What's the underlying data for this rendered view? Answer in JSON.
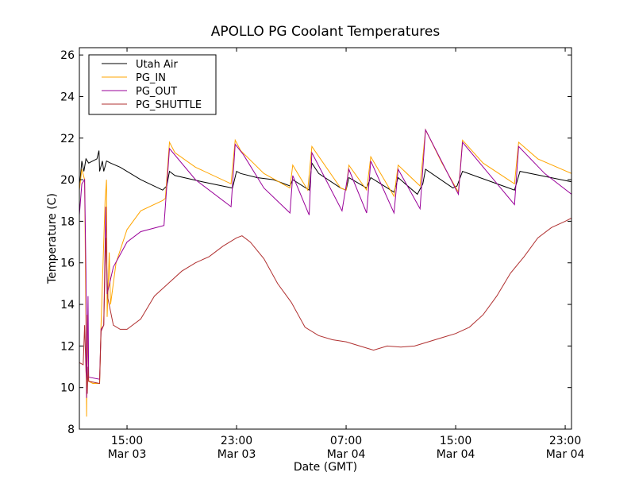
{
  "chart_data": {
    "type": "line",
    "title": "APOLLO PG Coolant Temperatures",
    "xlabel": "Date (GMT)",
    "ylabel": "Temperature (C)",
    "x_units": "hours since Mar 03 00:00 GMT",
    "xlim": [
      11.52,
      47.46
    ],
    "ylim": [
      8,
      26.35
    ],
    "grid": false,
    "legend_placement": "top-left",
    "yticks": [
      8,
      10,
      12,
      14,
      16,
      18,
      20,
      22,
      24,
      26
    ],
    "xticks": [
      {
        "value": 15,
        "time": "15:00",
        "date": "Mar 03"
      },
      {
        "value": 23,
        "time": "23:00",
        "date": "Mar 03"
      },
      {
        "value": 31,
        "time": "07:00",
        "date": "Mar 04"
      },
      {
        "value": 39,
        "time": "15:00",
        "date": "Mar 04"
      },
      {
        "value": 47,
        "time": "23:00",
        "date": "Mar 04"
      }
    ],
    "series": [
      {
        "name": "Utah Air",
        "color": "#000000",
        "points": [
          [
            11.52,
            19.6
          ],
          [
            11.7,
            20.9
          ],
          [
            11.85,
            20.4
          ],
          [
            12.0,
            21.0
          ],
          [
            12.2,
            20.8
          ],
          [
            12.5,
            20.9
          ],
          [
            12.8,
            21.0
          ],
          [
            12.95,
            21.4
          ],
          [
            13.0,
            20.4
          ],
          [
            13.2,
            20.9
          ],
          [
            13.3,
            20.4
          ],
          [
            13.5,
            20.9
          ],
          [
            13.8,
            20.8
          ],
          [
            14.5,
            20.6
          ],
          [
            16.0,
            20.0
          ],
          [
            17.6,
            19.5
          ],
          [
            17.9,
            19.7
          ],
          [
            18.1,
            20.4
          ],
          [
            18.5,
            20.2
          ],
          [
            20.5,
            19.9
          ],
          [
            22.7,
            19.6
          ],
          [
            23.0,
            20.4
          ],
          [
            23.3,
            20.3
          ],
          [
            24.5,
            20.1
          ],
          [
            25.7,
            20.0
          ],
          [
            26.9,
            19.7
          ],
          [
            27.1,
            20.0
          ],
          [
            28.3,
            19.5
          ],
          [
            28.5,
            20.8
          ],
          [
            29.0,
            20.3
          ],
          [
            30.6,
            19.6
          ],
          [
            31.0,
            19.5
          ],
          [
            31.2,
            20.1
          ],
          [
            32.5,
            19.6
          ],
          [
            32.8,
            20.1
          ],
          [
            34.5,
            19.4
          ],
          [
            34.8,
            20.1
          ],
          [
            36.2,
            19.3
          ],
          [
            36.6,
            19.8
          ],
          [
            36.8,
            20.5
          ],
          [
            38.8,
            19.6
          ],
          [
            39.1,
            19.7
          ],
          [
            39.5,
            20.4
          ],
          [
            43.3,
            19.5
          ],
          [
            43.7,
            20.4
          ],
          [
            47.46,
            19.9
          ]
        ]
      },
      {
        "name": "PG_IN",
        "color": "#FFA500",
        "points": [
          [
            11.52,
            19.5
          ],
          [
            11.7,
            20.5
          ],
          [
            11.9,
            20.0
          ],
          [
            12.0,
            13.0
          ],
          [
            12.05,
            8.6
          ],
          [
            12.1,
            13.5
          ],
          [
            12.2,
            10.3
          ],
          [
            12.5,
            10.2
          ],
          [
            13.0,
            10.2
          ],
          [
            13.1,
            13.0
          ],
          [
            13.4,
            19.0
          ],
          [
            13.5,
            20.0
          ],
          [
            13.55,
            13.4
          ],
          [
            13.7,
            16.5
          ],
          [
            13.8,
            14.0
          ],
          [
            14.2,
            16.0
          ],
          [
            15.0,
            17.6
          ],
          [
            16.0,
            18.5
          ],
          [
            17.6,
            19.0
          ],
          [
            17.8,
            19.1
          ],
          [
            18.1,
            21.8
          ],
          [
            18.5,
            21.3
          ],
          [
            20.0,
            20.6
          ],
          [
            22.6,
            19.8
          ],
          [
            22.9,
            21.9
          ],
          [
            23.3,
            21.4
          ],
          [
            25.0,
            20.3
          ],
          [
            26.9,
            19.6
          ],
          [
            27.1,
            20.7
          ],
          [
            28.2,
            19.5
          ],
          [
            28.5,
            21.6
          ],
          [
            30.6,
            19.6
          ],
          [
            31.0,
            19.5
          ],
          [
            31.2,
            20.7
          ],
          [
            32.5,
            19.5
          ],
          [
            32.8,
            21.1
          ],
          [
            34.5,
            19.2
          ],
          [
            34.8,
            20.7
          ],
          [
            36.4,
            19.7
          ],
          [
            36.8,
            22.4
          ],
          [
            38.0,
            20.8
          ],
          [
            39.2,
            19.4
          ],
          [
            39.5,
            21.9
          ],
          [
            41.0,
            20.8
          ],
          [
            43.3,
            19.8
          ],
          [
            43.6,
            21.8
          ],
          [
            45.0,
            21.0
          ],
          [
            47.46,
            20.3
          ]
        ]
      },
      {
        "name": "PG_OUT",
        "color": "#990099",
        "points": [
          [
            11.52,
            18.3
          ],
          [
            11.7,
            19.8
          ],
          [
            11.9,
            20.0
          ],
          [
            12.0,
            15.5
          ],
          [
            12.05,
            9.5
          ],
          [
            12.15,
            14.4
          ],
          [
            12.2,
            10.5
          ],
          [
            13.0,
            10.4
          ],
          [
            13.1,
            12.8
          ],
          [
            13.3,
            13.0
          ],
          [
            13.45,
            18.7
          ],
          [
            13.55,
            14.5
          ],
          [
            14.0,
            15.8
          ],
          [
            15.0,
            17.0
          ],
          [
            16.0,
            17.5
          ],
          [
            17.7,
            17.8
          ],
          [
            18.1,
            21.5
          ],
          [
            20.0,
            20.0
          ],
          [
            22.6,
            18.7
          ],
          [
            22.9,
            21.7
          ],
          [
            23.5,
            21.2
          ],
          [
            25.0,
            19.6
          ],
          [
            26.9,
            18.4
          ],
          [
            27.1,
            20.2
          ],
          [
            28.3,
            18.3
          ],
          [
            28.5,
            21.3
          ],
          [
            30.7,
            18.5
          ],
          [
            31.2,
            20.5
          ],
          [
            32.5,
            18.4
          ],
          [
            32.8,
            20.9
          ],
          [
            34.5,
            18.4
          ],
          [
            34.8,
            20.5
          ],
          [
            36.4,
            18.6
          ],
          [
            36.8,
            22.4
          ],
          [
            39.2,
            19.3
          ],
          [
            39.5,
            21.8
          ],
          [
            43.3,
            18.8
          ],
          [
            43.6,
            21.6
          ],
          [
            45.5,
            20.3
          ],
          [
            47.46,
            19.3
          ]
        ]
      },
      {
        "name": "PG_SHUTTLE",
        "color": "#B03030",
        "points": [
          [
            11.52,
            11.2
          ],
          [
            11.8,
            11.1
          ],
          [
            11.9,
            13.0
          ],
          [
            12.0,
            10.8
          ],
          [
            12.1,
            9.7
          ],
          [
            12.15,
            11.0
          ],
          [
            12.2,
            10.3
          ],
          [
            13.0,
            10.2
          ],
          [
            13.1,
            12.7
          ],
          [
            13.3,
            13.0
          ],
          [
            13.45,
            17.2
          ],
          [
            13.6,
            14.3
          ],
          [
            14.0,
            13.0
          ],
          [
            14.5,
            12.8
          ],
          [
            15.0,
            12.8
          ],
          [
            16.0,
            13.3
          ],
          [
            17.0,
            14.4
          ],
          [
            18.0,
            15.0
          ],
          [
            19.0,
            15.6
          ],
          [
            20.0,
            16.0
          ],
          [
            21.0,
            16.3
          ],
          [
            22.0,
            16.8
          ],
          [
            23.0,
            17.2
          ],
          [
            23.4,
            17.3
          ],
          [
            24.0,
            17.0
          ],
          [
            25.0,
            16.2
          ],
          [
            26.0,
            15.0
          ],
          [
            27.0,
            14.1
          ],
          [
            28.0,
            12.9
          ],
          [
            29.0,
            12.5
          ],
          [
            30.0,
            12.3
          ],
          [
            31.0,
            12.2
          ],
          [
            32.0,
            12.0
          ],
          [
            33.0,
            11.8
          ],
          [
            34.0,
            12.0
          ],
          [
            35.0,
            11.95
          ],
          [
            36.0,
            12.0
          ],
          [
            37.0,
            12.2
          ],
          [
            38.0,
            12.4
          ],
          [
            39.0,
            12.6
          ],
          [
            40.0,
            12.9
          ],
          [
            41.0,
            13.5
          ],
          [
            42.0,
            14.4
          ],
          [
            43.0,
            15.5
          ],
          [
            44.0,
            16.3
          ],
          [
            45.0,
            17.2
          ],
          [
            46.0,
            17.7
          ],
          [
            47.0,
            18.0
          ],
          [
            47.46,
            18.15
          ]
        ]
      }
    ]
  }
}
